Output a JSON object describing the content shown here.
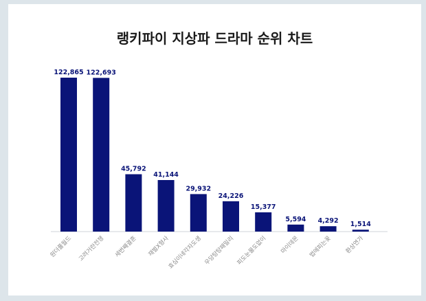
{
  "chart_data": {
    "type": "bar",
    "title": "랭키파이 지상파 드라마 순위 차트",
    "xlabel": "",
    "ylabel": "",
    "ylim": [
      0,
      130000
    ],
    "grid": false,
    "categories": [
      "원더풀월드",
      "고려거란전쟁",
      "세번째결혼",
      "재벌X형사",
      "효심이네각자도생",
      "우당탕탕패밀리",
      "피도눈물도없이",
      "마이데몬",
      "법에피는꽃",
      "환상연가"
    ],
    "values": [
      122865,
      122693,
      45792,
      41144,
      29932,
      24226,
      15377,
      5594,
      4292,
      1514
    ],
    "value_labels": [
      "122,865",
      "122,693",
      "45,792",
      "41,144",
      "29,932",
      "24,226",
      "15,377",
      "5,594",
      "4,292",
      "1,514"
    ],
    "bar_color": "#0a1478"
  }
}
